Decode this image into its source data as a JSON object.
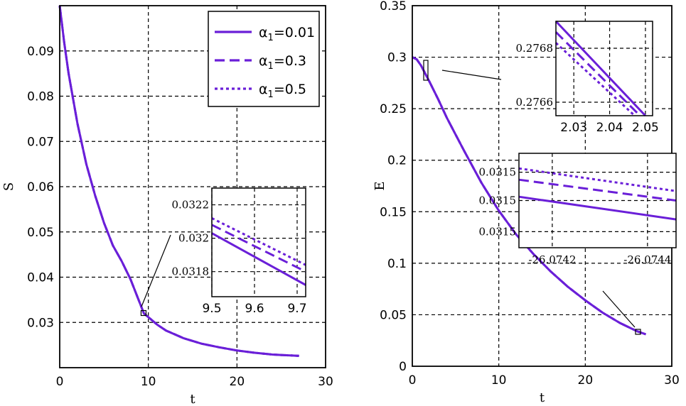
{
  "colors": {
    "series": "#6a1fd8",
    "grid": "#000000",
    "background": "#ffffff"
  },
  "chart_data": [
    {
      "type": "line",
      "ylabel": "S",
      "xlabel": "t",
      "xlim": [
        0,
        30
      ],
      "ylim": [
        0.02,
        0.1
      ],
      "xticks": [
        "0",
        "10",
        "20",
        "30"
      ],
      "yticks": [
        "0.03",
        "0.04",
        "0.05",
        "0.06",
        "0.07",
        "0.08",
        "0.09"
      ],
      "yticks_values": [
        0.03,
        0.04,
        0.05,
        0.06,
        0.07,
        0.08,
        0.09
      ],
      "grid": true,
      "legend": "top-right",
      "series": [
        {
          "name": "α1=0.01",
          "style": "solid",
          "x": [
            0,
            0.5,
            1,
            2,
            3,
            4,
            5,
            6,
            7,
            8,
            9.5,
            11,
            12,
            14,
            16,
            18,
            20,
            22,
            24,
            27
          ],
          "y": [
            0.1,
            0.092,
            0.085,
            0.074,
            0.065,
            0.058,
            0.052,
            0.047,
            0.0435,
            0.0395,
            0.032,
            0.0295,
            0.0282,
            0.0265,
            0.0253,
            0.0245,
            0.0238,
            0.0233,
            0.0229,
            0.0226
          ]
        },
        {
          "name": "α1=0.3",
          "style": "dashed",
          "x": [
            0,
            0.5,
            1,
            2,
            3,
            4,
            5,
            6,
            7,
            8,
            9.5,
            11,
            12,
            14,
            16,
            18,
            20,
            22,
            24,
            27
          ],
          "y": [
            0.1,
            0.092,
            0.085,
            0.074,
            0.065,
            0.058,
            0.052,
            0.047,
            0.0435,
            0.0395,
            0.032,
            0.0295,
            0.0282,
            0.0265,
            0.0253,
            0.0245,
            0.0238,
            0.0233,
            0.0229,
            0.0226
          ]
        },
        {
          "name": "α1=0.5",
          "style": "dotted",
          "x": [
            0,
            0.5,
            1,
            2,
            3,
            4,
            5,
            6,
            7,
            8,
            9.5,
            11,
            12,
            14,
            16,
            18,
            20,
            22,
            24,
            27
          ],
          "y": [
            0.1,
            0.092,
            0.085,
            0.074,
            0.065,
            0.058,
            0.052,
            0.047,
            0.0435,
            0.0395,
            0.032,
            0.0295,
            0.0282,
            0.0265,
            0.0253,
            0.0245,
            0.0238,
            0.0233,
            0.0229,
            0.0226
          ]
        }
      ],
      "inset": {
        "xlim": [
          9.5,
          9.72
        ],
        "ylim": [
          0.03165,
          0.0323
        ],
        "xticks": [
          "9.5",
          "9.6",
          "9.7"
        ],
        "xticks_values": [
          9.5,
          9.6,
          9.7
        ],
        "yticks": [
          "0.0322",
          "0.032",
          "0.0318"
        ],
        "yticks_values": [
          0.0322,
          0.032,
          0.0318
        ],
        "series": [
          {
            "name": "α1=0.01",
            "style": "solid",
            "x": [
              9.5,
              9.72
            ],
            "y": [
              0.03203,
              0.03172
            ]
          },
          {
            "name": "α1=0.3",
            "style": "dashed",
            "x": [
              9.5,
              9.72
            ],
            "y": [
              0.03208,
              0.0318
            ]
          },
          {
            "name": "α1=0.5",
            "style": "dotted",
            "x": [
              9.5,
              9.72
            ],
            "y": [
              0.03212,
              0.03184
            ]
          }
        ]
      }
    },
    {
      "type": "line",
      "ylabel": "E",
      "xlabel": "t",
      "xlim": [
        0,
        30
      ],
      "ylim": [
        0,
        0.35
      ],
      "xticks": [
        "0",
        "10",
        "20",
        "30"
      ],
      "yticks": [
        "0",
        "0.05",
        "0.1",
        "0.15",
        "0.2",
        "0.25",
        "0.3",
        "0.35"
      ],
      "yticks_values": [
        0,
        0.05,
        0.1,
        0.15,
        0.2,
        0.25,
        0.3,
        0.35
      ],
      "grid": true,
      "series": [
        {
          "name": "α1=0.01",
          "style": "solid",
          "x": [
            0,
            0.5,
            1,
            2,
            3,
            4,
            5,
            6,
            8,
            10,
            12,
            14,
            16,
            18,
            20,
            22,
            24,
            26,
            27
          ],
          "y": [
            0.3,
            0.298,
            0.292,
            0.276,
            0.259,
            0.241,
            0.225,
            0.209,
            0.178,
            0.151,
            0.128,
            0.109,
            0.092,
            0.077,
            0.064,
            0.052,
            0.042,
            0.034,
            0.031
          ]
        },
        {
          "name": "α1=0.3",
          "style": "dashed",
          "x": [
            0,
            0.5,
            1,
            2,
            3,
            4,
            5,
            6,
            8,
            10,
            12,
            14,
            16,
            18,
            20,
            22,
            24,
            26,
            27
          ],
          "y": [
            0.3,
            0.298,
            0.292,
            0.276,
            0.259,
            0.241,
            0.225,
            0.209,
            0.178,
            0.151,
            0.128,
            0.109,
            0.092,
            0.077,
            0.064,
            0.052,
            0.042,
            0.034,
            0.031
          ]
        },
        {
          "name": "α1=0.5",
          "style": "dotted",
          "x": [
            0,
            0.5,
            1,
            2,
            3,
            4,
            5,
            6,
            8,
            10,
            12,
            14,
            16,
            18,
            20,
            22,
            24,
            26,
            27
          ],
          "y": [
            0.3,
            0.298,
            0.292,
            0.276,
            0.259,
            0.241,
            0.225,
            0.209,
            0.178,
            0.151,
            0.128,
            0.109,
            0.092,
            0.077,
            0.064,
            0.052,
            0.042,
            0.034,
            0.031
          ]
        }
      ],
      "inset_top": {
        "xlim": [
          2.025,
          2.052
        ],
        "ylim": [
          0.27655,
          0.2769
        ],
        "xticks": [
          "2.03",
          "2.04",
          "2.05"
        ],
        "xticks_values": [
          2.03,
          2.04,
          2.05
        ],
        "yticks": [
          "0.2768",
          "0.2766"
        ],
        "yticks_values": [
          0.2768,
          0.2766
        ],
        "series": [
          {
            "name": "α1=0.01",
            "style": "solid",
            "x": [
              2.025,
              2.05
            ],
            "y": [
              0.2769,
              0.27655
            ]
          },
          {
            "name": "α1=0.3",
            "style": "dashed",
            "x": [
              2.025,
              2.0485
            ],
            "y": [
              0.27686,
              0.27655
            ]
          },
          {
            "name": "α1=0.5",
            "style": "dotted",
            "x": [
              2.025,
              2.047
            ],
            "y": [
              0.27682,
              0.27655
            ]
          }
        ]
      },
      "inset_bottom": {
        "xlim": [
          -26.07413,
          -26.07446
        ],
        "ylim": [
          0,
          1
        ],
        "xticks": [
          "-26.0742",
          "-26.0744"
        ],
        "xticks_values": [
          -26.0742,
          -26.0744
        ],
        "yticks": [
          "0.0315",
          "0.0315",
          "0.0315"
        ],
        "yticks_values": [
          0.8,
          0.5,
          0.17
        ],
        "series": [
          {
            "name": "α1=0.01",
            "style": "solid",
            "x": [
              -26.07413,
              -26.07446
            ],
            "y": [
              0.54,
              0.3
            ]
          },
          {
            "name": "α1=0.3",
            "style": "dashed",
            "x": [
              -26.07413,
              -26.07446
            ],
            "y": [
              0.72,
              0.5
            ]
          },
          {
            "name": "α1=0.5",
            "style": "dotted",
            "x": [
              -26.07413,
              -26.07446
            ],
            "y": [
              0.84,
              0.6
            ]
          }
        ]
      }
    }
  ]
}
